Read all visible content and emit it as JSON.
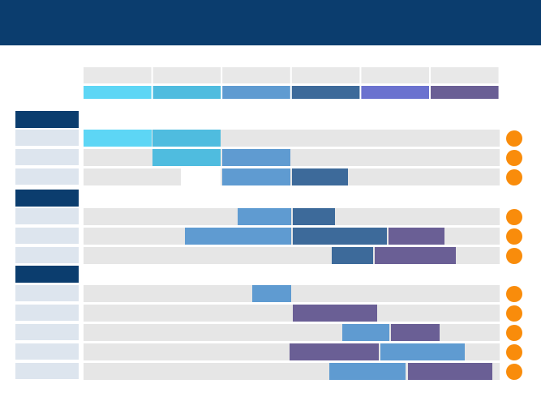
{
  "legend_colors": [
    "#5dd6f5",
    "#4fbcdf",
    "#5f9bd1",
    "#3d6a9a",
    "#6b72cf",
    "#6a5f95"
  ]
}
